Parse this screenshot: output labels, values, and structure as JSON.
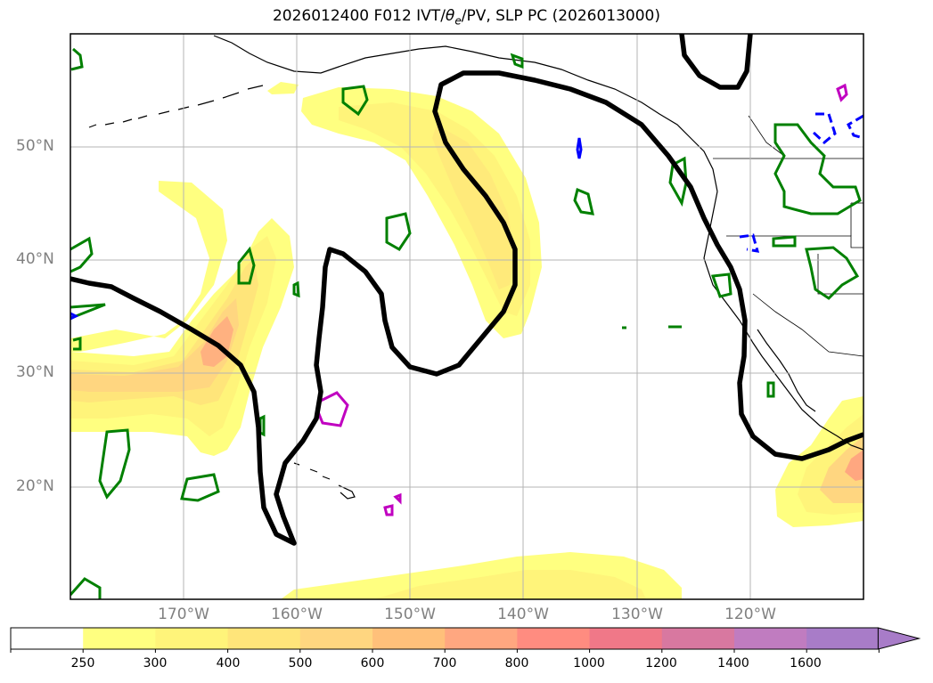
{
  "title": {
    "prefix": "2026012400 F012 IVT/",
    "theta": "θ",
    "theta_sub": "e",
    "suffix": "/PV, SLP PC (2026013000)"
  },
  "map": {
    "lat_labels": [
      "50°N",
      "40°N",
      "30°N",
      "20°N"
    ],
    "lon_labels": [
      "170°W",
      "160°W",
      "150°W",
      "140°W",
      "130°W",
      "120°W"
    ],
    "black_contour": "SLP PC",
    "fill_field": "IVT"
  },
  "colorbar": {
    "levels": [
      "250",
      "300",
      "400",
      "500",
      "600",
      "700",
      "800",
      "1000",
      "1200",
      "1400",
      "1600"
    ],
    "colors": [
      "#ffffff",
      "#ffff80",
      "#fff47a",
      "#ffe57a",
      "#ffd680",
      "#ffc07a",
      "#ffa780",
      "#ff8c80",
      "#f07888",
      "#d878a0",
      "#c07cc0",
      "#a87cc8"
    ],
    "extend": "max"
  }
}
